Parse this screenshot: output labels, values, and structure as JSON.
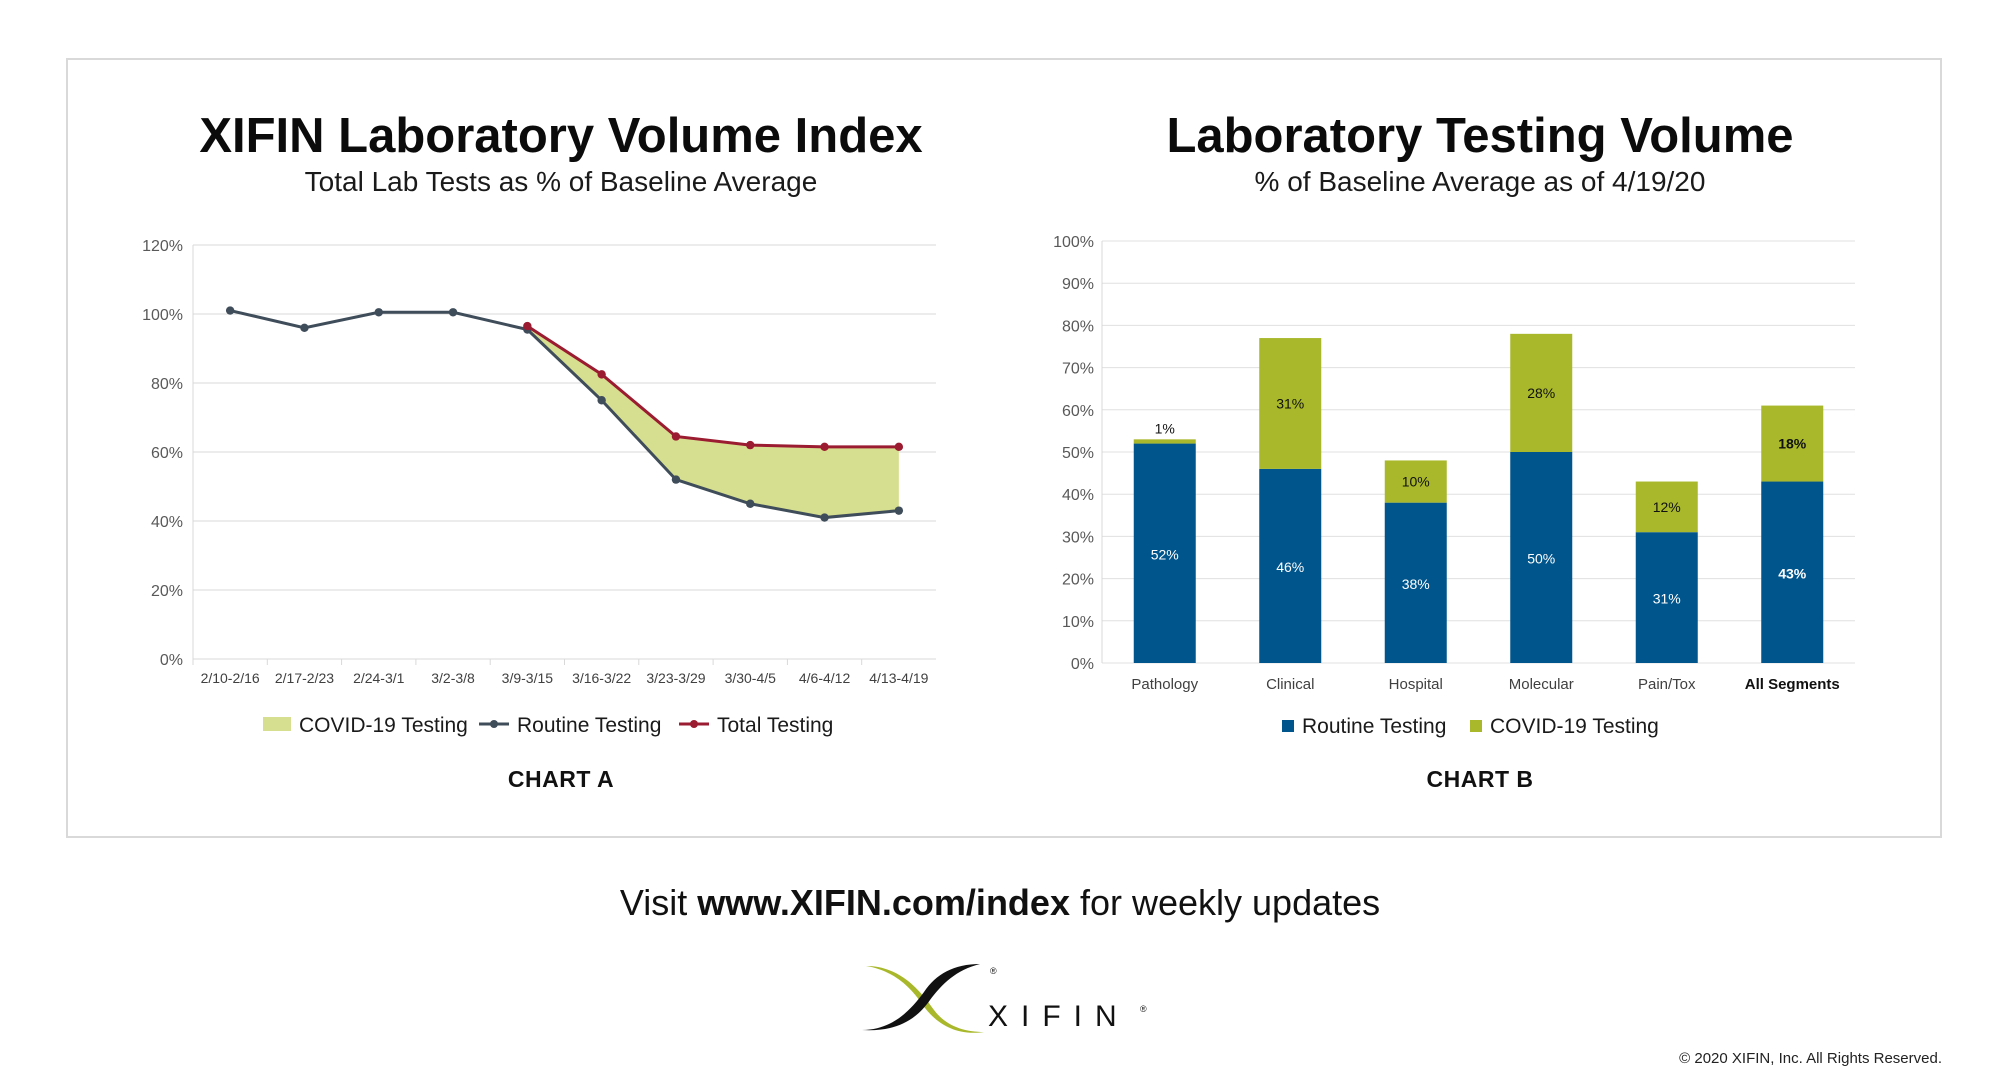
{
  "chart_data": [
    {
      "type": "line",
      "title": "XIFIN Laboratory Volume Index",
      "subtitle": "Total Lab Tests as % of Baseline Average",
      "caption": "CHART A",
      "xlabel": "",
      "ylabel": "",
      "ylim": [
        0,
        120
      ],
      "y_ticks": [
        "0%",
        "20%",
        "40%",
        "60%",
        "80%",
        "100%",
        "120%"
      ],
      "categories": [
        "2/10-2/16",
        "2/17-2/23",
        "2/24-3/1",
        "3/2-3/8",
        "3/9-3/15",
        "3/16-3/22",
        "3/23-3/29",
        "3/30-4/5",
        "4/6-4/12",
        "4/13-4/19"
      ],
      "series": [
        {
          "name": "Routine Testing",
          "color": "#3f4c5a",
          "values": [
            101,
            96,
            100.5,
            100.5,
            95.5,
            75,
            52,
            45,
            41,
            43
          ]
        },
        {
          "name": "Total Testing",
          "color": "#9b1b30",
          "values": [
            null,
            null,
            null,
            null,
            96.5,
            82.5,
            64.5,
            62,
            61.5,
            61.5
          ]
        },
        {
          "name": "COVID-19 Testing",
          "color": "#d6df8f",
          "type": "area",
          "note": "area between Routine Testing and Total Testing"
        }
      ],
      "legend": [
        "COVID-19 Testing",
        "Routine Testing",
        "Total Testing"
      ],
      "grid": true,
      "legend_position": "bottom"
    },
    {
      "type": "bar",
      "stacked": true,
      "title": "Laboratory Testing Volume",
      "subtitle": "% of Baseline Average as of 4/19/20",
      "caption": "CHART B",
      "ylim": [
        0,
        100
      ],
      "y_ticks": [
        "0%",
        "10%",
        "20%",
        "30%",
        "40%",
        "50%",
        "60%",
        "70%",
        "80%",
        "90%",
        "100%"
      ],
      "categories": [
        "Pathology",
        "Clinical",
        "Hospital",
        "Molecular",
        "Pain/Tox",
        "All Segments"
      ],
      "series": [
        {
          "name": "Routine Testing",
          "color": "#00558c",
          "values": [
            52,
            46,
            38,
            50,
            31,
            43
          ],
          "labels": [
            "52%",
            "46%",
            "38%",
            "50%",
            "31%",
            "43%"
          ]
        },
        {
          "name": "COVID-19 Testing",
          "color": "#a8b82a",
          "values": [
            1,
            31,
            10,
            28,
            12,
            18
          ],
          "labels": [
            "1%",
            "31%",
            "10%",
            "28%",
            "12%",
            "18%"
          ]
        }
      ],
      "legend": [
        "Routine Testing",
        "COVID-19 Testing"
      ],
      "grid": true,
      "legend_position": "bottom"
    }
  ],
  "footer": {
    "visit_prefix": "Visit ",
    "visit_url": "www.XIFIN.com/index",
    "visit_suffix": " for weekly updates",
    "logo_text": "XIFIN",
    "registered_mark": "®",
    "copyright": "© 2020 XIFIN, Inc. All Rights Reserved."
  }
}
